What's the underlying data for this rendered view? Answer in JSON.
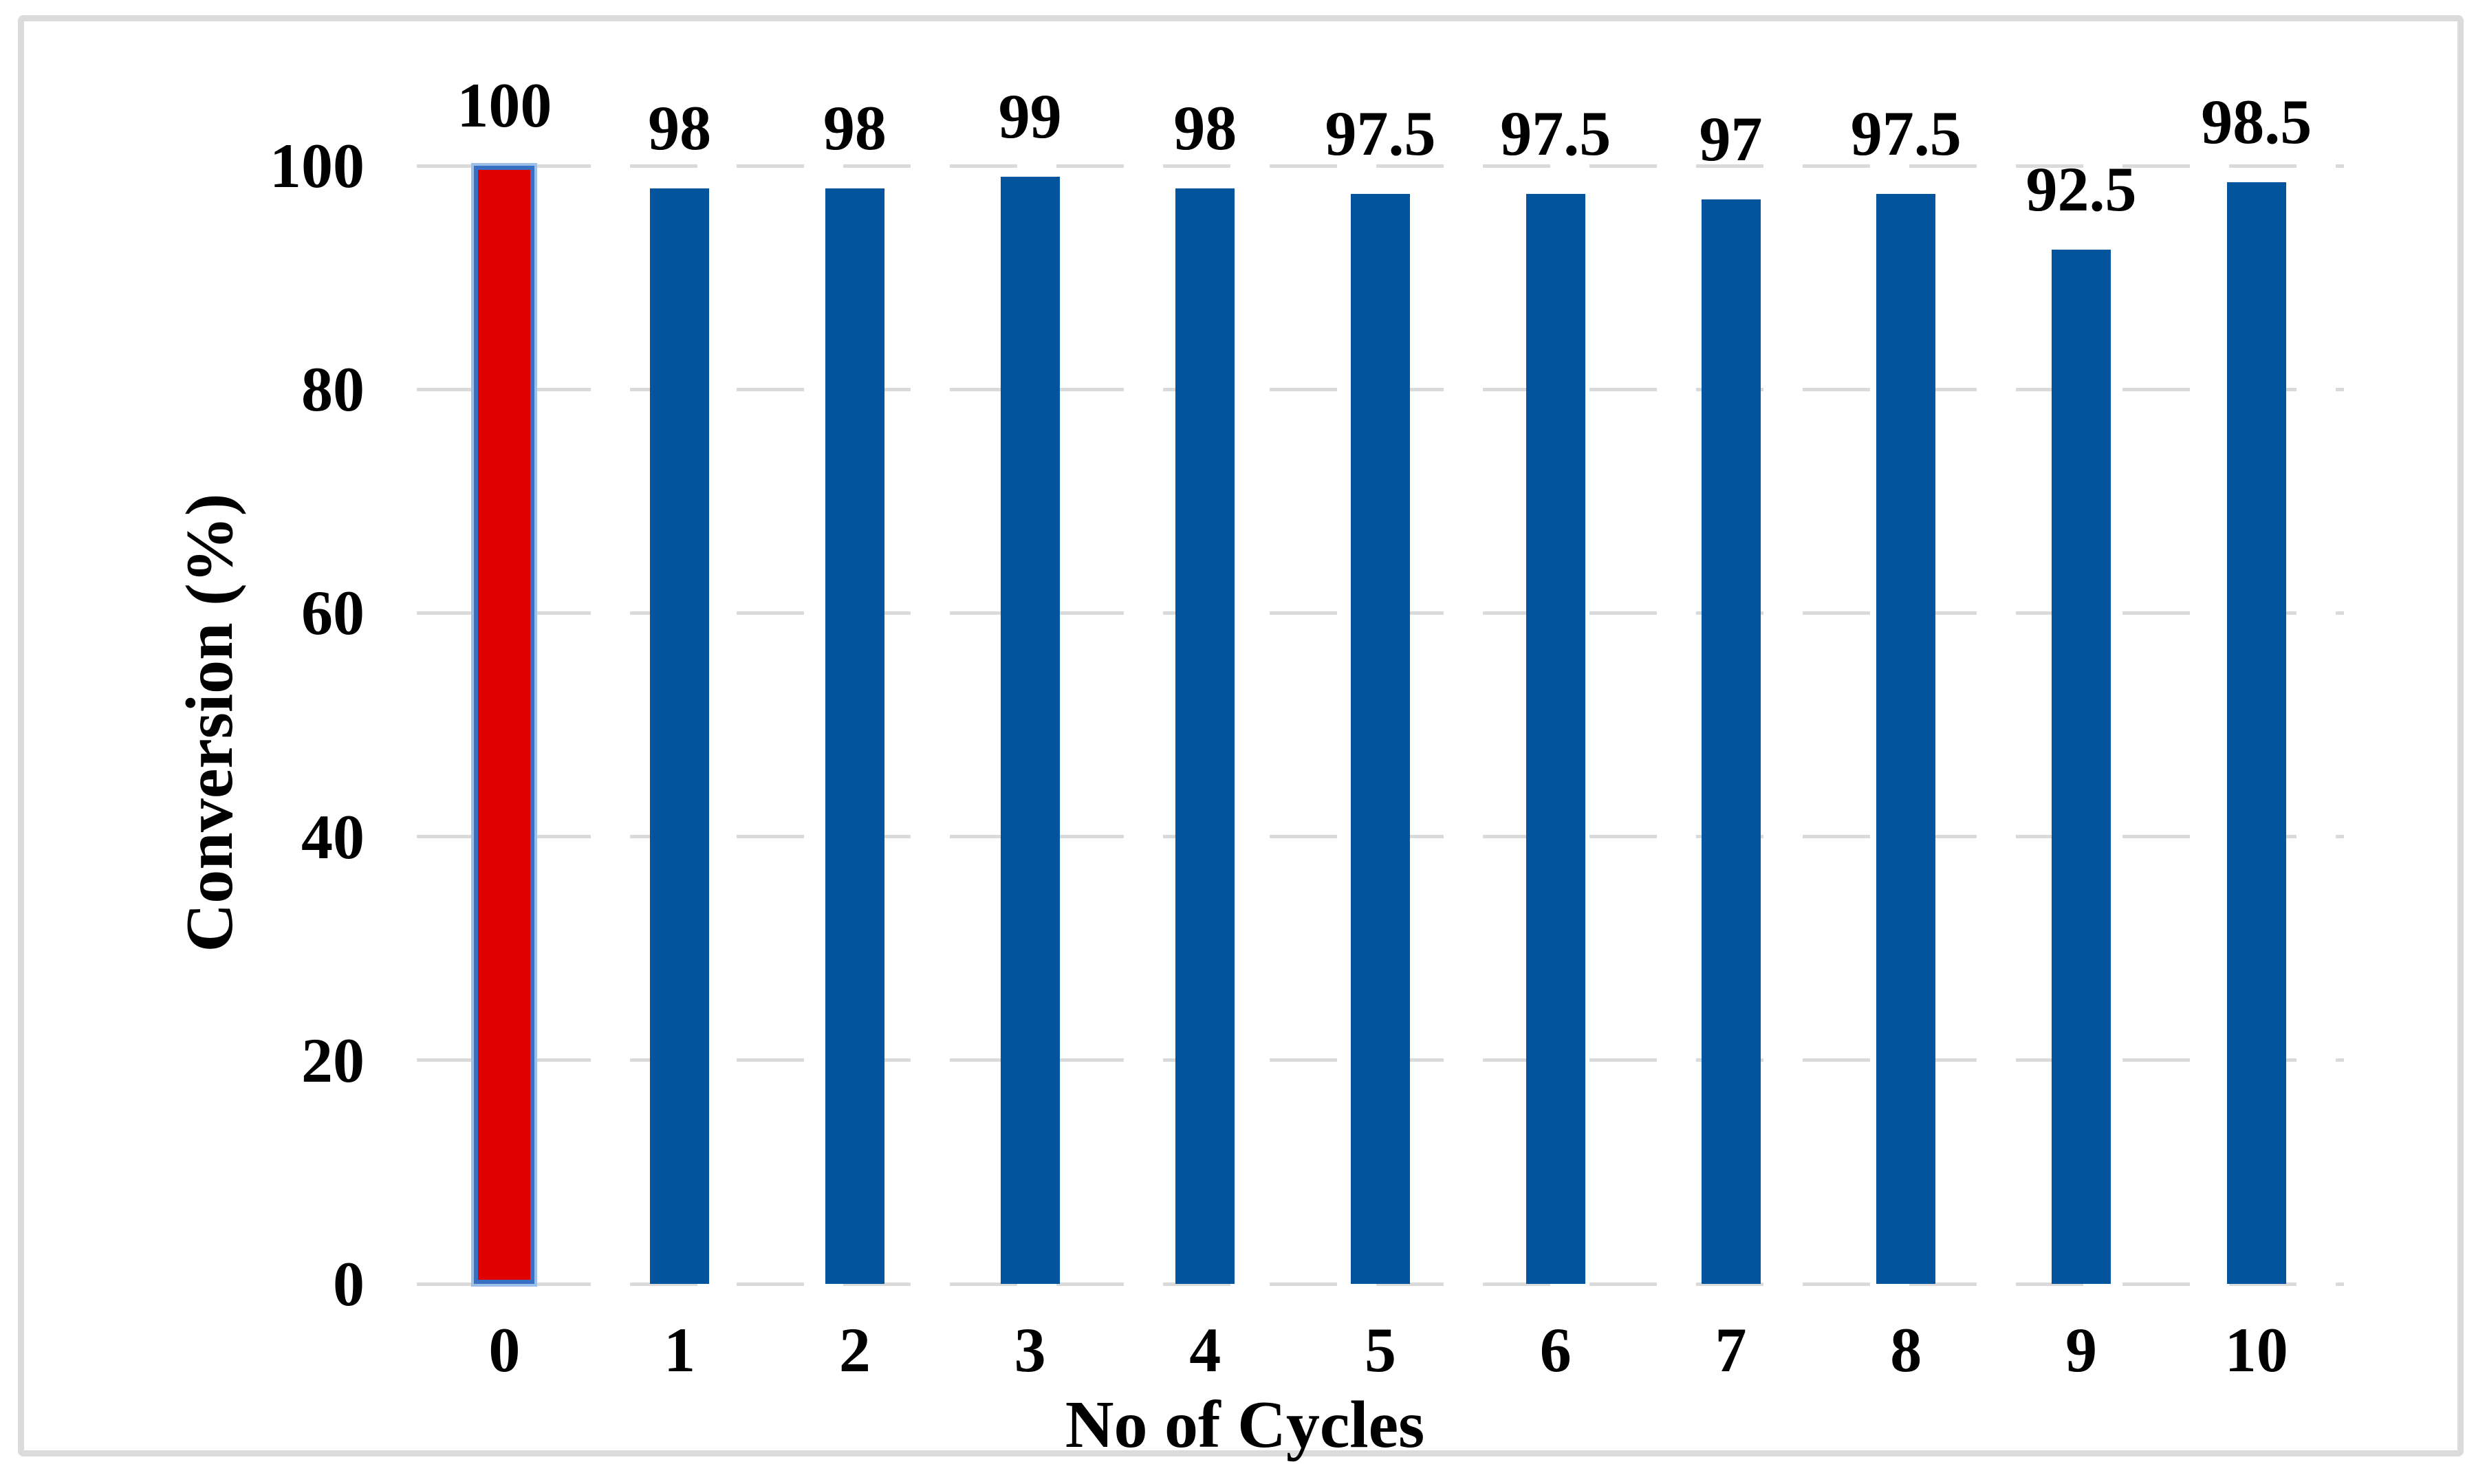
{
  "chart_data": {
    "type": "bar",
    "title": "",
    "xlabel": "No of Cycles",
    "ylabel": "Conversion (%)",
    "categories": [
      "0",
      "1",
      "2",
      "3",
      "4",
      "5",
      "6",
      "7",
      "8",
      "9",
      "10"
    ],
    "values": [
      100,
      98,
      98,
      99,
      98,
      97.5,
      97.5,
      97,
      97.5,
      92.5,
      98.5
    ],
    "data_labels": [
      "100",
      "98",
      "98",
      "99",
      "98",
      "97.5",
      "97.5",
      "97",
      "97.5",
      "92.5",
      "98.5"
    ],
    "yticks": [
      0,
      20,
      40,
      60,
      80,
      100
    ],
    "ylim": [
      0,
      100
    ],
    "grid": "horizontal-dashed",
    "legend": "none",
    "highlight_index": 0,
    "colors": {
      "bar_default": "#02559C",
      "highlight_fill": "#E00000",
      "highlight_border": "#3A70C2",
      "highlight_halo": "#9DC0E8",
      "gridline": "#D8D8D8",
      "frame_border": "#DBDBDB",
      "text": "#000000"
    }
  }
}
